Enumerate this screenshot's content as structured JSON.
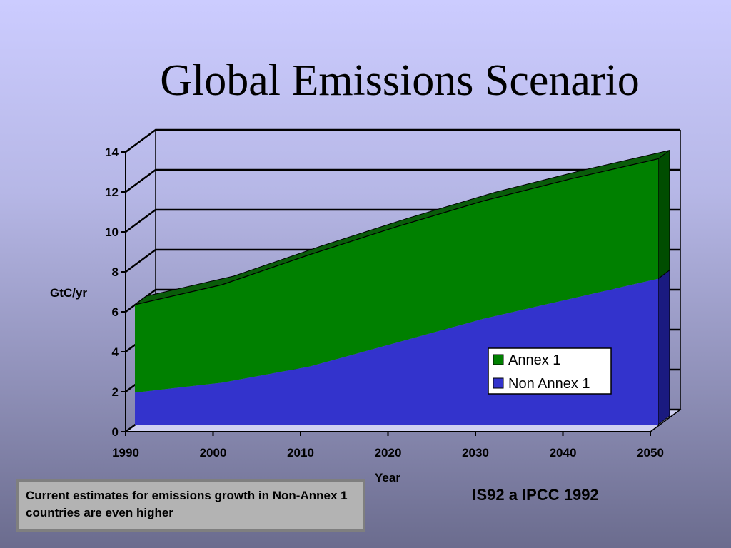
{
  "slide": {
    "title": "Global Emissions Scenario",
    "note": "Current estimates for emissions growth in Non-Annex 1 countries are even higher",
    "source": "IS92 a IPCC 1992"
  },
  "colors": {
    "annex1": "#008000",
    "annex1_top": "#0a5c0a",
    "annex1_side": "#004d00",
    "non_annex1": "#3333cc",
    "non_annex1_side": "#1a1a80",
    "floor": "#cfd0f0"
  },
  "chart_data": {
    "type": "area",
    "stacked": true,
    "three_d": true,
    "x": [
      1990,
      2000,
      2010,
      2020,
      2030,
      2040,
      2050
    ],
    "xlabel": "Year",
    "ylabel": "GtC/yr",
    "ylim": [
      0,
      14
    ],
    "yticks": [
      0,
      2,
      4,
      6,
      8,
      10,
      12,
      14
    ],
    "grid": true,
    "legend_position": "bottom-right",
    "series": [
      {
        "name": "Non Annex 1",
        "values": [
          1.6,
          2.1,
          2.9,
          4.1,
          5.3,
          6.3,
          7.3
        ]
      },
      {
        "name": "Annex 1",
        "values": [
          4.4,
          4.9,
          5.6,
          5.8,
          5.9,
          6.0,
          6.0
        ]
      }
    ]
  }
}
